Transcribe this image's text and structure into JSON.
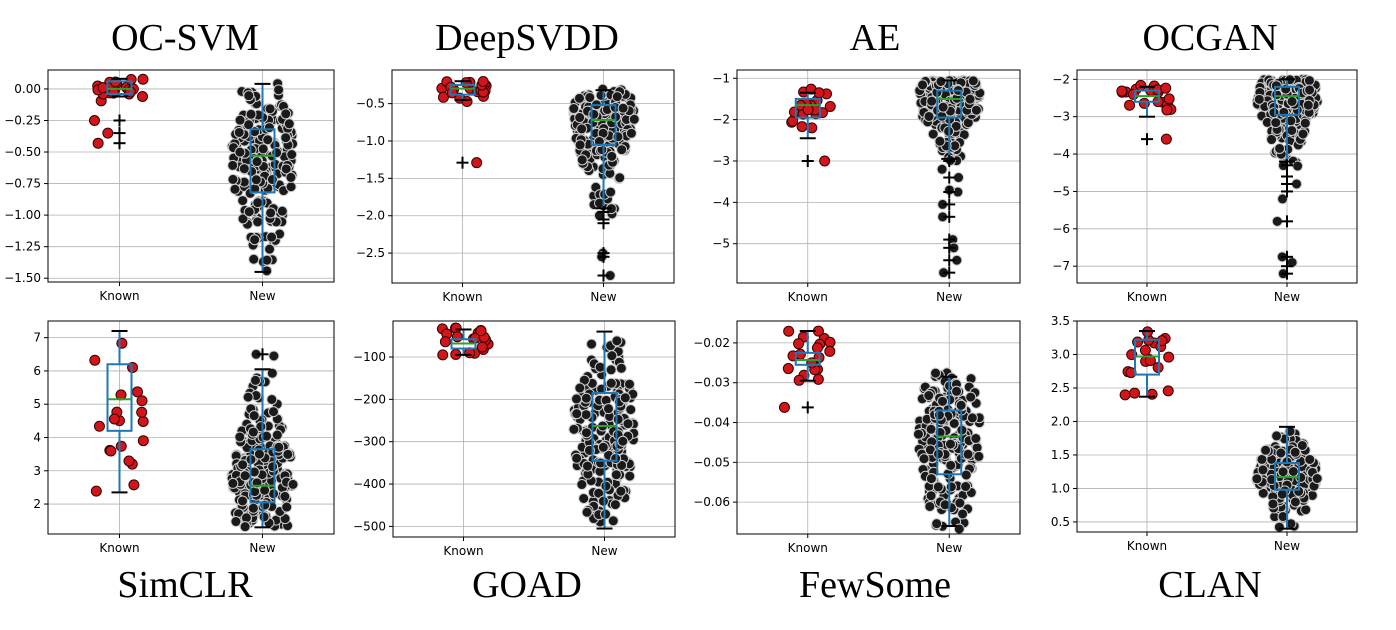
{
  "colors": {
    "known_point": "#d0151b",
    "new_point": "#1a1a1a",
    "box": "#1f77b4",
    "median": "#2ca02c",
    "grid": "#b0b0b0"
  },
  "chart_data": [
    {
      "type": "box-swarm",
      "title": "OC-SVM",
      "title_position": "top",
      "categories": [
        "Known",
        "New"
      ],
      "ylim": [
        -1.53,
        0.15
      ],
      "yticks": [
        0.0,
        -0.25,
        -0.5,
        -0.75,
        -1.0,
        -1.25,
        -1.5
      ],
      "ytick_labels": [
        "0.00",
        "−0.25",
        "−0.50",
        "−0.75",
        "−1.00",
        "−1.25",
        "−1.50"
      ],
      "grid": true,
      "boxes": [
        {
          "name": "Known",
          "whislo": -0.06,
          "q1": -0.04,
          "med": 0.0,
          "q3": 0.06,
          "whishi": 0.08,
          "fliers": [
            -0.25,
            -0.35,
            -0.43
          ]
        },
        {
          "name": "New",
          "whislo": -1.45,
          "q1": -0.82,
          "med": -0.53,
          "q3": -0.32,
          "whishi": 0.04,
          "fliers": []
        }
      ],
      "points": [
        {
          "name": "Known",
          "n": 22,
          "spread": [
            -0.1,
            0.08
          ],
          "extra": [
            -0.25,
            -0.35,
            -0.43
          ]
        },
        {
          "name": "New",
          "n": 200,
          "spread": [
            -1.45,
            0.05
          ]
        }
      ]
    },
    {
      "type": "box-swarm",
      "title": "DeepSVDD",
      "title_position": "top",
      "categories": [
        "Known",
        "New"
      ],
      "ylim": [
        -2.9,
        -0.05
      ],
      "yticks": [
        -0.5,
        -1.0,
        -1.5,
        -2.0,
        -2.5
      ],
      "ytick_labels": [
        "−0.5",
        "−1.0",
        "−1.5",
        "−2.0",
        "−2.5"
      ],
      "grid": true,
      "boxes": [
        {
          "name": "Known",
          "whislo": -0.45,
          "q1": -0.38,
          "med": -0.3,
          "q3": -0.25,
          "whishi": -0.2,
          "fliers": [
            -1.29
          ]
        },
        {
          "name": "New",
          "whislo": -1.9,
          "q1": -1.05,
          "med": -0.72,
          "q3": -0.52,
          "whishi": -0.32,
          "fliers": [
            -1.95,
            -2.05,
            -2.1,
            -2.5,
            -2.55,
            -2.8
          ]
        }
      ],
      "points": [
        {
          "name": "Known",
          "n": 20,
          "spread": [
            -0.48,
            -0.2
          ],
          "extra": [
            -1.29
          ]
        },
        {
          "name": "New",
          "n": 200,
          "spread": [
            -2.0,
            -0.3
          ],
          "extra": [
            -2.5,
            -2.8,
            -2.55
          ]
        }
      ]
    },
    {
      "type": "box-swarm",
      "title": "AE",
      "title_position": "top",
      "categories": [
        "Known",
        "New"
      ],
      "ylim": [
        -5.95,
        -0.8
      ],
      "yticks": [
        -1,
        -2,
        -3,
        -4,
        -5
      ],
      "ytick_labels": [
        "−1",
        "−2",
        "−3",
        "−4",
        "−5"
      ],
      "grid": true,
      "boxes": [
        {
          "name": "Known",
          "whislo": -2.45,
          "q1": -1.95,
          "med": -1.65,
          "q3": -1.5,
          "whishi": -1.35,
          "fliers": [
            -3.0
          ]
        },
        {
          "name": "New",
          "whislo": -2.95,
          "q1": -1.95,
          "med": -1.5,
          "q3": -1.3,
          "whishi": -1.05,
          "fliers": [
            -3.0,
            -3.4,
            -3.75,
            -4.05,
            -4.35,
            -4.9,
            -5.1,
            -5.4,
            -5.7
          ]
        }
      ],
      "points": [
        {
          "name": "Known",
          "n": 20,
          "spread": [
            -2.2,
            -1.25
          ],
          "extra": [
            -3.0
          ]
        },
        {
          "name": "New",
          "n": 200,
          "spread": [
            -3.0,
            -1.05
          ],
          "extra": [
            -3.4,
            -3.75,
            -4.05,
            -4.35,
            -4.9,
            -5.1,
            -5.4,
            -5.7,
            -3.7,
            -3.2
          ]
        }
      ]
    },
    {
      "type": "box-swarm",
      "title": "OCGAN",
      "title_position": "top",
      "categories": [
        "Known",
        "New"
      ],
      "ylim": [
        -7.45,
        -1.75
      ],
      "yticks": [
        -2,
        -3,
        -4,
        -5,
        -6,
        -7
      ],
      "ytick_labels": [
        "−2",
        "−3",
        "−4",
        "−5",
        "−6",
        "−7"
      ],
      "grid": true,
      "boxes": [
        {
          "name": "Known",
          "whislo": -3.0,
          "q1": -2.6,
          "med": -2.45,
          "q3": -2.3,
          "whishi": -2.2,
          "fliers": [
            -3.6
          ]
        },
        {
          "name": "New",
          "whislo": -4.2,
          "q1": -2.95,
          "med": -2.45,
          "q3": -2.2,
          "whishi": -2.0,
          "fliers": [
            -4.3,
            -4.6,
            -4.8,
            -5.0,
            -5.8,
            -6.75,
            -7.0,
            -7.2
          ]
        }
      ],
      "points": [
        {
          "name": "Known",
          "n": 20,
          "spread": [
            -3.05,
            -2.1
          ],
          "extra": [
            -3.6
          ]
        },
        {
          "name": "New",
          "n": 200,
          "spread": [
            -4.4,
            -2.0
          ],
          "extra": [
            -4.8,
            -5.2,
            -5.8,
            -6.75,
            -7.2,
            -6.9,
            -3.85
          ]
        }
      ]
    },
    {
      "type": "box-swarm",
      "title": "SimCLR",
      "title_position": "bottom",
      "categories": [
        "Known",
        "New"
      ],
      "ylim": [
        1.1,
        7.5
      ],
      "yticks": [
        2,
        3,
        4,
        5,
        6,
        7
      ],
      "ytick_labels": [
        "2",
        "3",
        "4",
        "5",
        "6",
        "7"
      ],
      "grid": true,
      "boxes": [
        {
          "name": "Known",
          "whislo": 2.35,
          "q1": 4.2,
          "med": 5.15,
          "q3": 6.2,
          "whishi": 7.2,
          "fliers": []
        },
        {
          "name": "New",
          "whislo": 1.3,
          "q1": 2.05,
          "med": 2.55,
          "q3": 3.65,
          "whishi": 6.05,
          "fliers": [
            6.5
          ]
        }
      ],
      "points": [
        {
          "name": "Known",
          "n": 20,
          "spread": [
            2.35,
            7.2
          ]
        },
        {
          "name": "New",
          "n": 200,
          "spread": [
            1.3,
            6.1
          ],
          "extra": [
            6.5,
            6.45
          ]
        }
      ]
    },
    {
      "type": "box-swarm",
      "title": "GOAD",
      "title_position": "bottom",
      "categories": [
        "Known",
        "New"
      ],
      "ylim": [
        -525,
        -15
      ],
      "yticks": [
        -100,
        -200,
        -300,
        -400,
        -500
      ],
      "ytick_labels": [
        "−100",
        "−200",
        "−300",
        "−400",
        "−500"
      ],
      "grid": true,
      "boxes": [
        {
          "name": "Known",
          "whislo": -95,
          "q1": -80,
          "med": -68,
          "q3": -58,
          "whishi": -35,
          "fliers": []
        },
        {
          "name": "New",
          "whislo": -505,
          "q1": -345,
          "med": -263,
          "q3": -185,
          "whishi": -40,
          "fliers": []
        }
      ],
      "points": [
        {
          "name": "Known",
          "n": 20,
          "spread": [
            -100,
            -30
          ]
        },
        {
          "name": "New",
          "n": 200,
          "spread": [
            -505,
            -45
          ]
        }
      ]
    },
    {
      "type": "box-swarm",
      "title": "FewSome",
      "title_position": "bottom",
      "categories": [
        "Known",
        "New"
      ],
      "ylim": [
        -0.068,
        -0.0145
      ],
      "yticks": [
        -0.02,
        -0.03,
        -0.04,
        -0.05,
        -0.06
      ],
      "ytick_labels": [
        "−0.02",
        "−0.03",
        "−0.04",
        "−0.05",
        "−0.06"
      ],
      "grid": true,
      "boxes": [
        {
          "name": "Known",
          "whislo": -0.0295,
          "q1": -0.0255,
          "med": -0.0243,
          "q3": -0.0225,
          "whishi": -0.017,
          "fliers": [
            -0.0362
          ]
        },
        {
          "name": "New",
          "whislo": -0.066,
          "q1": -0.053,
          "med": -0.0435,
          "q3": -0.037,
          "whishi": -0.0285,
          "fliers": []
        }
      ],
      "points": [
        {
          "name": "Known",
          "n": 20,
          "spread": [
            -0.0295,
            -0.017
          ],
          "extra": [
            -0.0362
          ]
        },
        {
          "name": "New",
          "n": 200,
          "spread": [
            -0.067,
            -0.0275
          ]
        }
      ]
    },
    {
      "type": "box-swarm",
      "title": "CLAN",
      "title_position": "bottom",
      "categories": [
        "Known",
        "New"
      ],
      "ylim": [
        0.35,
        3.5
      ],
      "yticks": [
        0.5,
        1.0,
        1.5,
        2.0,
        2.5,
        3.0,
        3.5
      ],
      "ytick_labels": [
        "0.5",
        "1.0",
        "1.5",
        "2.0",
        "2.5",
        "3.0",
        "3.5"
      ],
      "grid": true,
      "boxes": [
        {
          "name": "Known",
          "whislo": 2.37,
          "q1": 2.7,
          "med": 2.97,
          "q3": 3.22,
          "whishi": 3.35,
          "fliers": []
        },
        {
          "name": "New",
          "whislo": 0.4,
          "q1": 0.98,
          "med": 1.17,
          "q3": 1.38,
          "whishi": 1.92,
          "fliers": []
        }
      ],
      "points": [
        {
          "name": "Known",
          "n": 20,
          "spread": [
            2.37,
            3.35
          ]
        },
        {
          "name": "New",
          "n": 200,
          "spread": [
            0.4,
            1.9
          ]
        }
      ]
    }
  ]
}
